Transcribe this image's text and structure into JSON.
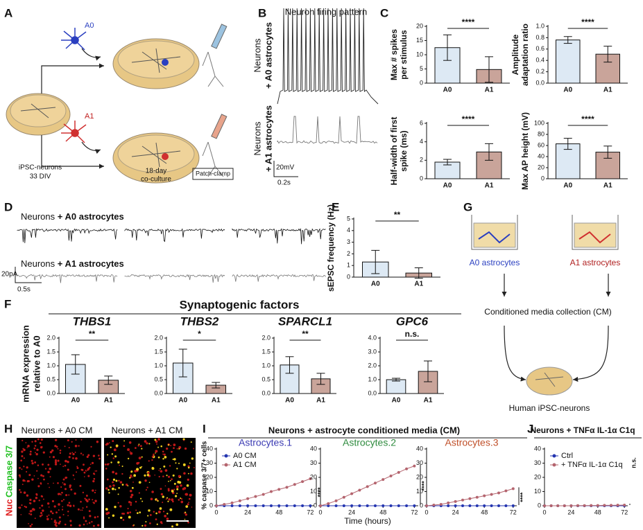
{
  "panel_labels": [
    "A",
    "B",
    "C",
    "D",
    "E",
    "F",
    "G",
    "H",
    "I",
    "J"
  ],
  "panel_a": {
    "a0": "A0",
    "a1": "A1",
    "neurons": [
      "iPSC-neurons",
      "33 DIV"
    ],
    "coculture": [
      "18-day",
      "co-culture"
    ],
    "patch": "Patch-clamp"
  },
  "panel_b": {
    "title": "Neuron firing pattern",
    "neurons": "Neurons",
    "a0": "+ A0 astrocytes",
    "a1": "+ A1 astrocytes",
    "scale_y": "20mV",
    "scale_x": "0.2s"
  },
  "panel_d": {
    "neurons": "Neurons",
    "a0": "+ A0 astrocytes",
    "a1": "+ A1 astrocytes",
    "scale_y": "20pA",
    "scale_x": "0.5s"
  },
  "panel_f": {
    "title": "Synaptogenic factors",
    "ylabel": [
      "mRNA expression",
      "relative to A0"
    ]
  },
  "panel_g": {
    "a0": "A0 astrocytes",
    "a1": "A1 astrocytes",
    "collection": "Conditioned media collection (CM)",
    "neurons": "Human iPSC-neurons"
  },
  "panel_h": {
    "a0": "Neurons + A0 CM",
    "a1": "Neurons + A1 CM",
    "stain_nuc": "Nuc",
    "stain_casp": "Caspase 3/7"
  },
  "panel_i": {
    "title": "Neurons + astrocyte conditioned media (CM)",
    "ylabel": "% caspase 3/7+ cells",
    "xlabel": "Time (hours)"
  },
  "chart_data": [
    {
      "type": "bar",
      "ylabel": [
        "Max # spikes",
        "per stimulus"
      ],
      "categories": [
        "A0",
        "A1"
      ],
      "values": [
        12.5,
        4.8
      ],
      "errors": [
        4.5,
        4.5
      ],
      "colors": [
        "#dde9f4",
        "#c9a49a"
      ],
      "ylim": [
        0,
        20
      ],
      "yticks": [
        0,
        5,
        10,
        15,
        20
      ],
      "significance": "****"
    },
    {
      "type": "bar",
      "ylabel": [
        "Amplitude",
        "adaptation ratio"
      ],
      "categories": [
        "A0",
        "A1"
      ],
      "values": [
        0.76,
        0.51
      ],
      "errors": [
        0.06,
        0.14
      ],
      "colors": [
        "#dde9f4",
        "#c9a49a"
      ],
      "ylim": [
        0,
        1
      ],
      "yticks": [
        {
          "value": 0,
          "label": "0.0"
        },
        0.2,
        0.4,
        0.6,
        0.8,
        {
          "value": 1,
          "label": "1.0"
        }
      ],
      "significance": "****"
    },
    {
      "type": "bar",
      "ylabel": [
        "Half-width of first",
        "spike (ms)"
      ],
      "categories": [
        "A0",
        "A1"
      ],
      "values": [
        1.8,
        2.9
      ],
      "errors": [
        0.3,
        0.9
      ],
      "colors": [
        "#dde9f4",
        "#c9a49a"
      ],
      "ylim": [
        0,
        6
      ],
      "yticks": [
        0,
        2,
        4,
        6
      ],
      "significance": "****"
    },
    {
      "type": "bar",
      "ylabel": [
        "Max AP height (mV)"
      ],
      "categories": [
        "A0",
        "A1"
      ],
      "values": [
        63,
        48
      ],
      "errors": [
        10,
        11
      ],
      "colors": [
        "#dde9f4",
        "#c9a49a"
      ],
      "ylim": [
        0,
        100
      ],
      "yticks": [
        0,
        20,
        40,
        60,
        80,
        100
      ],
      "significance": "****"
    },
    {
      "type": "bar",
      "ylabel": [
        "sEPSC frequency (Hz)"
      ],
      "categories": [
        "A0",
        "A1"
      ],
      "values": [
        1.3,
        0.35
      ],
      "errors": [
        1.0,
        0.45
      ],
      "colors": [
        "#dde9f4",
        "#c9a49a"
      ],
      "ylim": [
        0,
        5
      ],
      "yticks": [
        0,
        1,
        2,
        3,
        4,
        5
      ],
      "significance": "**"
    },
    {
      "type": "bar",
      "title": "THBS1",
      "categories": [
        "A0",
        "A1"
      ],
      "values": [
        1.05,
        0.48
      ],
      "errors": [
        0.35,
        0.15
      ],
      "colors": [
        "#dde9f4",
        "#c9a49a"
      ],
      "ylim": [
        0,
        2
      ],
      "yticks": [
        {
          "value": 0,
          "label": "0.0"
        },
        0.5,
        {
          "value": 1,
          "label": "1.0"
        },
        1.5,
        {
          "value": 2,
          "label": "2.0"
        }
      ],
      "significance": "**"
    },
    {
      "type": "bar",
      "title": "THBS2",
      "categories": [
        "A0",
        "A1"
      ],
      "values": [
        1.1,
        0.3
      ],
      "errors": [
        0.5,
        0.1
      ],
      "colors": [
        "#dde9f4",
        "#c9a49a"
      ],
      "ylim": [
        0,
        2
      ],
      "yticks": [
        {
          "value": 0,
          "label": "0.0"
        },
        0.5,
        {
          "value": 1,
          "label": "1.0"
        },
        1.5,
        {
          "value": 2,
          "label": "2.0"
        }
      ],
      "significance": "*"
    },
    {
      "type": "bar",
      "title": "SPARCL1",
      "categories": [
        "A0",
        "A1"
      ],
      "values": [
        1.03,
        0.53
      ],
      "errors": [
        0.3,
        0.2
      ],
      "colors": [
        "#dde9f4",
        "#c9a49a"
      ],
      "ylim": [
        0,
        2
      ],
      "yticks": [
        {
          "value": 0,
          "label": "0.0"
        },
        0.5,
        {
          "value": 1,
          "label": "1.0"
        },
        1.5,
        {
          "value": 2,
          "label": "2.0"
        }
      ],
      "significance": "**"
    },
    {
      "type": "bar",
      "title": "GPC6",
      "categories": [
        "A0",
        "A1"
      ],
      "values": [
        1.0,
        1.6
      ],
      "errors": [
        0.1,
        0.75
      ],
      "colors": [
        "#dde9f4",
        "#c9a49a"
      ],
      "ylim": [
        0,
        4
      ],
      "yticks": [
        {
          "value": 0,
          "label": "0.0"
        },
        {
          "value": 1,
          "label": "1.0"
        },
        {
          "value": 2,
          "label": "2.0"
        },
        {
          "value": 3,
          "label": "3.0"
        },
        {
          "value": 4,
          "label": "4.0"
        }
      ],
      "significance": "n.s."
    },
    {
      "type": "line",
      "title": "Astrocytes.1",
      "title_color": "#3b3bb3",
      "x": [
        0,
        6,
        12,
        18,
        24,
        30,
        36,
        42,
        48,
        54,
        60,
        66,
        72
      ],
      "xlim": [
        0,
        75
      ],
      "xticks": [
        0,
        24,
        48,
        72
      ],
      "ylim": [
        0,
        40
      ],
      "yticks": [
        0,
        10,
        20,
        30,
        40
      ],
      "legend": "upper left",
      "significance": "****",
      "series": [
        {
          "name": "A0 CM",
          "color": "#2435b0",
          "values": [
            0,
            0,
            0,
            0,
            0,
            0,
            0,
            0,
            0,
            0,
            0,
            0,
            0
          ]
        },
        {
          "name": "A1 CM",
          "color": "#b4646e",
          "values": [
            0,
            1,
            2,
            3.5,
            5,
            6.5,
            8,
            10,
            11.5,
            13,
            15,
            17,
            19
          ]
        }
      ]
    },
    {
      "type": "line",
      "title": "Astrocytes.2",
      "title_color": "#2e8b3e",
      "x": [
        0,
        6,
        12,
        18,
        24,
        30,
        36,
        42,
        48,
        54,
        60,
        66,
        72
      ],
      "xlim": [
        0,
        75
      ],
      "xticks": [
        0,
        24,
        48,
        72
      ],
      "ylim": [
        0,
        40
      ],
      "yticks": [
        0,
        10,
        20,
        30,
        40
      ],
      "significance": "****",
      "series": [
        {
          "color": "#2435b0",
          "values": [
            0,
            0,
            0,
            0,
            0,
            0,
            0,
            0,
            0,
            0,
            0,
            0,
            0
          ]
        },
        {
          "color": "#b4646e",
          "values": [
            0,
            1.5,
            3.5,
            6,
            8.5,
            11,
            13.5,
            16,
            18.5,
            21,
            23.5,
            26,
            28
          ]
        }
      ]
    },
    {
      "type": "line",
      "title": "Astrocytes.3",
      "title_color": "#c0502a",
      "x": [
        0,
        6,
        12,
        18,
        24,
        30,
        36,
        42,
        48,
        54,
        60,
        66,
        72
      ],
      "xlim": [
        0,
        75
      ],
      "xticks": [
        0,
        24,
        48,
        72
      ],
      "ylim": [
        0,
        40
      ],
      "yticks": [
        0,
        10,
        20,
        30,
        40
      ],
      "significance": "****",
      "series": [
        {
          "color": "#2435b0",
          "values": [
            0,
            0,
            0,
            0,
            0,
            0,
            0,
            0,
            0,
            0,
            0,
            0,
            0
          ]
        },
        {
          "color": "#b4646e",
          "values": [
            0,
            0.5,
            1,
            2,
            3,
            4,
            5,
            6,
            7,
            8,
            9,
            10.5,
            12
          ]
        }
      ]
    },
    {
      "type": "line",
      "title": "Neurons + TNFα IL-1α C1q",
      "x": [
        0,
        6,
        12,
        18,
        24,
        30,
        36,
        42,
        48,
        54,
        60,
        66,
        72
      ],
      "xlim": [
        0,
        75
      ],
      "xticks": [
        0,
        24,
        48,
        72
      ],
      "ylim": [
        0,
        40
      ],
      "yticks": [
        0,
        10,
        20,
        30,
        40
      ],
      "legend": "upper left",
      "significance": "n.s.",
      "series": [
        {
          "name": "Ctrl",
          "color": "#2435b0",
          "values": [
            0,
            0,
            0,
            0,
            0,
            0,
            0,
            0,
            0,
            0,
            0,
            0,
            0
          ]
        },
        {
          "name": "+ TNFα IL-1α C1q",
          "color": "#b4646e",
          "values": [
            0,
            0,
            0,
            0,
            0,
            0.1,
            0.1,
            0.2,
            0.2,
            0.3,
            0.3,
            0.4,
            0.5
          ]
        }
      ]
    }
  ]
}
